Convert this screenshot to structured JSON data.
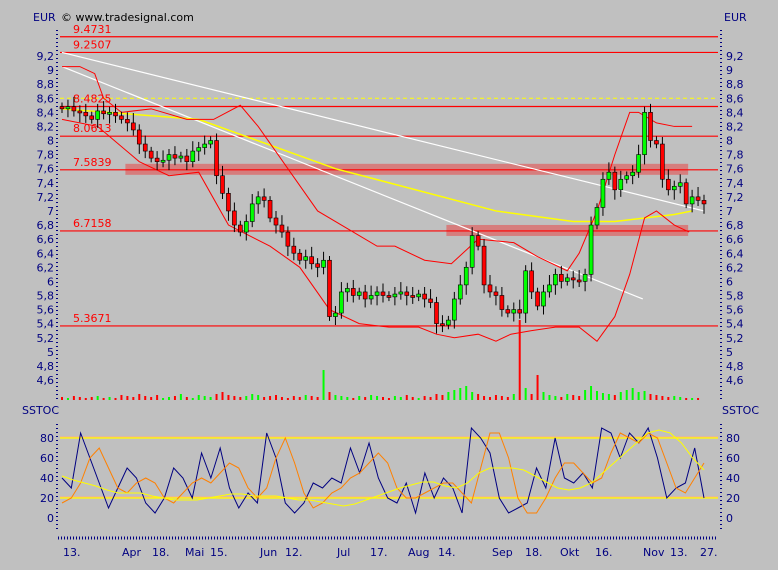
{
  "header": {
    "currency_left": "EUR",
    "currency_right": "EUR",
    "copyright": "© www.tradesignal.com"
  },
  "colors": {
    "background": "#c0c0c0",
    "axis": "#000080",
    "up_candle": "#00ff00",
    "down_candle": "#ff0000",
    "level_line": "#ff0000",
    "moving_average": "#ffff00",
    "trend_line": "#ffffff",
    "stoch_k": "#000080",
    "stoch_d": "#ff8000",
    "stoch_slow": "#ffff00"
  },
  "chart_data": [
    {
      "type": "candlestick",
      "ylim": [
        4.4,
        9.6
      ],
      "yticks": [
        "9,2",
        "9",
        "8,8",
        "8,6",
        "8,4",
        "8,2",
        "8",
        "7,8",
        "7,6",
        "7,4",
        "7,2",
        "7",
        "6,8",
        "6,6",
        "6,4",
        "6,2",
        "6",
        "5,8",
        "5,6",
        "5,4",
        "5,2",
        "5",
        "4,8",
        "4,6"
      ],
      "xticks": [
        "13.",
        "Apr",
        "18.",
        "Mai",
        "15.",
        "Jun",
        "12.",
        "Jul",
        "17.",
        "Aug",
        "14.",
        "Sep",
        "18.",
        "Okt",
        "16.",
        "Nov",
        "13.",
        "27."
      ],
      "closes": [
        8.45,
        8.48,
        8.42,
        8.4,
        8.35,
        8.3,
        8.42,
        8.38,
        8.4,
        8.35,
        8.3,
        8.25,
        8.15,
        7.95,
        7.85,
        7.75,
        7.7,
        7.72,
        7.8,
        7.75,
        7.78,
        7.7,
        7.85,
        7.9,
        7.95,
        8.0,
        7.5,
        7.25,
        7.0,
        6.8,
        6.7,
        6.85,
        7.1,
        7.2,
        7.15,
        6.9,
        6.8,
        6.7,
        6.5,
        6.4,
        6.3,
        6.35,
        6.25,
        6.2,
        6.3,
        5.5,
        5.55,
        5.85,
        5.9,
        5.8,
        5.85,
        5.75,
        5.8,
        5.85,
        5.8,
        5.78,
        5.82,
        5.85,
        5.8,
        5.78,
        5.82,
        5.75,
        5.7,
        5.4,
        5.38,
        5.45,
        5.75,
        5.95,
        6.2,
        6.65,
        6.5,
        5.95,
        5.85,
        5.8,
        5.6,
        5.55,
        5.6,
        5.55,
        6.15,
        5.85,
        5.65,
        5.85,
        5.95,
        6.1,
        6.0,
        6.05,
        6.02,
        6.0,
        6.1,
        6.8,
        7.05,
        7.45,
        7.55,
        7.3,
        7.45,
        7.5,
        7.55,
        7.8,
        8.4,
        8.0,
        7.95,
        7.45,
        7.3,
        7.35,
        7.4,
        7.1,
        7.2,
        7.15,
        7.1
      ],
      "volume": [
        3,
        2,
        4,
        3,
        2,
        3,
        4,
        2,
        3,
        2,
        5,
        4,
        3,
        6,
        4,
        3,
        5,
        2,
        3,
        4,
        6,
        3,
        2,
        5,
        4,
        3,
        6,
        8,
        5,
        4,
        3,
        4,
        6,
        5,
        3,
        4,
        5,
        3,
        2,
        4,
        3,
        5,
        4,
        3,
        30,
        8,
        5,
        4,
        3,
        2,
        4,
        3,
        5,
        4,
        3,
        2,
        4,
        3,
        5,
        3,
        2,
        4,
        3,
        6,
        5,
        8,
        10,
        12,
        14,
        8,
        6,
        4,
        3,
        5,
        4,
        3,
        6,
        80,
        12,
        6,
        25,
        8,
        5,
        4,
        3,
        6,
        5,
        4,
        10,
        14,
        9,
        7,
        6,
        5,
        8,
        10,
        12,
        8,
        9,
        6,
        5,
        4,
        3,
        4,
        3,
        2,
        2,
        2
      ],
      "levels": [
        {
          "value": 9.4731,
          "label": "9.4731"
        },
        {
          "value": 9.2507,
          "label": "9.2507"
        },
        {
          "value": 8.4825,
          "label": "8.4825"
        },
        {
          "value": 8.0613,
          "label": "8.0613"
        },
        {
          "value": 7.5839,
          "label": "7.5839"
        },
        {
          "value": 6.7158,
          "label": "6.7158"
        },
        {
          "value": 5.3671,
          "label": "5.3671"
        }
      ],
      "zones": [
        {
          "value": 7.5839,
          "from_bar": 11,
          "to_bar": 105
        },
        {
          "value": 6.7158,
          "from_bar": 65,
          "to_bar": 105
        }
      ],
      "dashed_level": 8.6,
      "bollinger_upper": [
        [
          0,
          9.05
        ],
        [
          3,
          9.05
        ],
        [
          5.5,
          8.95
        ],
        [
          7,
          8.6
        ],
        [
          10,
          8.4
        ],
        [
          15,
          8.45
        ],
        [
          21,
          8.3
        ],
        [
          25.5,
          8.3
        ],
        [
          30,
          8.5
        ],
        [
          33,
          8.2
        ],
        [
          38,
          7.6
        ],
        [
          43,
          7.0
        ],
        [
          48,
          6.75
        ],
        [
          53,
          6.5
        ],
        [
          56,
          6.5
        ],
        [
          61,
          6.3
        ],
        [
          65.5,
          6.25
        ],
        [
          70,
          6.6
        ],
        [
          76,
          6.55
        ],
        [
          80,
          6.35
        ],
        [
          85,
          6.15
        ],
        [
          87,
          6.4
        ],
        [
          90,
          7.0
        ],
        [
          93,
          7.8
        ],
        [
          95.5,
          8.4
        ],
        [
          97,
          8.4
        ],
        [
          100,
          8.25
        ],
        [
          103,
          8.2
        ],
        [
          106,
          8.2
        ]
      ],
      "bollinger_lower": [
        [
          0,
          8.3
        ],
        [
          6,
          8.2
        ],
        [
          13,
          7.7
        ],
        [
          18,
          7.5
        ],
        [
          23,
          7.55
        ],
        [
          28,
          6.8
        ],
        [
          35,
          6.5
        ],
        [
          40,
          6.2
        ],
        [
          45,
          5.6
        ],
        [
          50,
          5.4
        ],
        [
          55,
          5.35
        ],
        [
          60,
          5.35
        ],
        [
          63,
          5.25
        ],
        [
          66,
          5.2
        ],
        [
          70,
          5.25
        ],
        [
          73,
          5.15
        ],
        [
          75.5,
          5.25
        ],
        [
          79,
          5.3
        ],
        [
          83,
          5.35
        ],
        [
          87,
          5.35
        ],
        [
          90,
          5.15
        ],
        [
          93,
          5.5
        ],
        [
          95.5,
          6.1
        ],
        [
          98,
          6.9
        ],
        [
          100,
          7.0
        ],
        [
          103,
          6.8
        ],
        [
          105.5,
          6.7
        ]
      ],
      "moving_average": [
        [
          0,
          8.45
        ],
        [
          23,
          8.3
        ],
        [
          46,
          7.6
        ],
        [
          73,
          7.0
        ],
        [
          86,
          6.85
        ],
        [
          93,
          6.85
        ],
        [
          103,
          6.95
        ],
        [
          106,
          7.0
        ]
      ],
      "trend_lines": [
        [
          [
            0,
            9.25
          ],
          [
            108,
            7.0
          ]
        ],
        [
          [
            0,
            9.05
          ],
          [
            97.7,
            5.75
          ]
        ]
      ]
    },
    {
      "type": "line",
      "title": "SSTOC",
      "title_right": "SSTOC",
      "ylim": [
        -15,
        95
      ],
      "yticks": [
        "80",
        "60",
        "40",
        "20",
        "0"
      ],
      "hlines": [
        80,
        20
      ],
      "series": [
        {
          "values": [
            40,
            30,
            85,
            60,
            35,
            10,
            30,
            50,
            40,
            15,
            5,
            20,
            50,
            40,
            20,
            65,
            40,
            70,
            30,
            10,
            25,
            15,
            85,
            60,
            15,
            5,
            15,
            35,
            30,
            40,
            35,
            70,
            45,
            75,
            40,
            20,
            15,
            35,
            5,
            45,
            20,
            40,
            30,
            5,
            90,
            80,
            65,
            20,
            5,
            10,
            15,
            50,
            30,
            80,
            40,
            35,
            45,
            30,
            90,
            85,
            60,
            85,
            75,
            90,
            60,
            20,
            30,
            35,
            70,
            20
          ]
        },
        {
          "values": [
            15,
            20,
            35,
            60,
            70,
            50,
            30,
            25,
            35,
            40,
            35,
            20,
            15,
            25,
            35,
            40,
            35,
            45,
            55,
            50,
            30,
            20,
            30,
            60,
            80,
            55,
            25,
            10,
            15,
            25,
            30,
            40,
            45,
            55,
            65,
            55,
            30,
            20,
            20,
            25,
            30,
            35,
            35,
            25,
            15,
            50,
            85,
            85,
            60,
            20,
            5,
            5,
            20,
            40,
            55,
            55,
            45,
            35,
            40,
            65,
            85,
            80,
            75,
            85,
            80,
            55,
            30,
            25,
            40,
            55
          ]
        },
        {
          "values": [
            42,
            38,
            35,
            32,
            28,
            25,
            25,
            25,
            22,
            20,
            18,
            18,
            18,
            20,
            22,
            24,
            24,
            22,
            22,
            22,
            20,
            18,
            18,
            16,
            14,
            12,
            14,
            18,
            22,
            26,
            30,
            33,
            36,
            36,
            32,
            30,
            35,
            45,
            50,
            50,
            50,
            48,
            42,
            36,
            30,
            28,
            30,
            35,
            45,
            55,
            65,
            75,
            85,
            88,
            85,
            75,
            60,
            48
          ]
        }
      ]
    }
  ]
}
